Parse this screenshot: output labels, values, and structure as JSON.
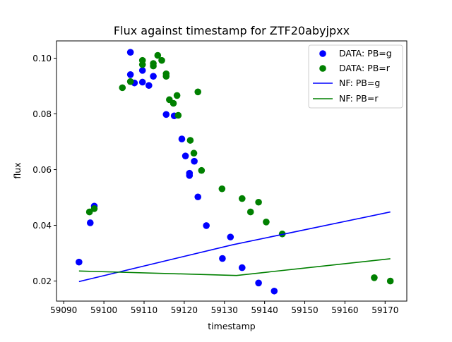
{
  "chart_data": {
    "type": "scatter",
    "title": "Flux against timestamp for ZTF20abyjpxx",
    "xlabel": "timestamp",
    "ylabel": "flux",
    "xlim": [
      59088.2,
      59175.4
    ],
    "ylim": [
      0.0128,
      0.1062
    ],
    "x_ticks": [
      59090,
      59100,
      59110,
      59120,
      59130,
      59140,
      59150,
      59160,
      59170
    ],
    "y_ticks": [
      0.02,
      0.04,
      0.06,
      0.08,
      0.1
    ],
    "x_tick_labels": [
      "59090",
      "59100",
      "59110",
      "59120",
      "59130",
      "59140",
      "59150",
      "59160",
      "59170"
    ],
    "y_tick_labels": [
      "0.02",
      "0.04",
      "0.06",
      "0.08",
      "0.10"
    ],
    "grid": false,
    "legend_position": "top-right",
    "series": [
      {
        "name": "DATA: PB=g",
        "kind": "scatter",
        "color": "#0000ff",
        "points": [
          [
            59093.8,
            0.0268
          ],
          [
            59096.6,
            0.0409
          ],
          [
            59097.6,
            0.0469
          ],
          [
            59106.6,
            0.1021
          ],
          [
            59106.6,
            0.0941
          ],
          [
            59107.6,
            0.0911
          ],
          [
            59109.6,
            0.0956
          ],
          [
            59109.6,
            0.0914
          ],
          [
            59111.2,
            0.0902
          ],
          [
            59112.3,
            0.0935
          ],
          [
            59115.5,
            0.0798
          ],
          [
            59117.5,
            0.0793
          ],
          [
            59119.4,
            0.071
          ],
          [
            59120.3,
            0.0649
          ],
          [
            59121.3,
            0.0587
          ],
          [
            59121.3,
            0.0579
          ],
          [
            59122.5,
            0.063
          ],
          [
            59123.4,
            0.0502
          ],
          [
            59125.5,
            0.0399
          ],
          [
            59129.5,
            0.0281
          ],
          [
            59131.5,
            0.0358
          ],
          [
            59134.4,
            0.0248
          ],
          [
            59138.5,
            0.0193
          ],
          [
            59142.4,
            0.0164
          ]
        ]
      },
      {
        "name": "DATA: PB=r",
        "kind": "scatter",
        "color": "#008000",
        "points": [
          [
            59096.4,
            0.0448
          ],
          [
            59097.6,
            0.046
          ],
          [
            59104.6,
            0.0894
          ],
          [
            59106.6,
            0.0916
          ],
          [
            59109.6,
            0.0992
          ],
          [
            59109.6,
            0.0977
          ],
          [
            59112.3,
            0.0981
          ],
          [
            59112.3,
            0.0972
          ],
          [
            59113.4,
            0.101
          ],
          [
            59114.4,
            0.0992
          ],
          [
            59115.5,
            0.0944
          ],
          [
            59115.5,
            0.0935
          ],
          [
            59116.3,
            0.0851
          ],
          [
            59117.3,
            0.0838
          ],
          [
            59118.2,
            0.0866
          ],
          [
            59118.5,
            0.0795
          ],
          [
            59121.5,
            0.0705
          ],
          [
            59122.4,
            0.0659
          ],
          [
            59123.4,
            0.0879
          ],
          [
            59124.3,
            0.0597
          ],
          [
            59129.4,
            0.0531
          ],
          [
            59134.4,
            0.0496
          ],
          [
            59136.5,
            0.0448
          ],
          [
            59138.5,
            0.0483
          ],
          [
            59140.4,
            0.0412
          ],
          [
            59144.4,
            0.0369
          ],
          [
            59167.3,
            0.0212
          ],
          [
            59171.3,
            0.02
          ]
        ]
      },
      {
        "name": "NF: PB=g",
        "kind": "line",
        "color": "#0000ff",
        "points": [
          [
            59093.8,
            0.0198
          ],
          [
            59132.0,
            0.033
          ],
          [
            59171.3,
            0.0448
          ]
        ]
      },
      {
        "name": "NF: PB=r",
        "kind": "line",
        "color": "#008000",
        "points": [
          [
            59093.8,
            0.0236
          ],
          [
            59133.0,
            0.022
          ],
          [
            59171.3,
            0.028
          ]
        ]
      }
    ]
  }
}
